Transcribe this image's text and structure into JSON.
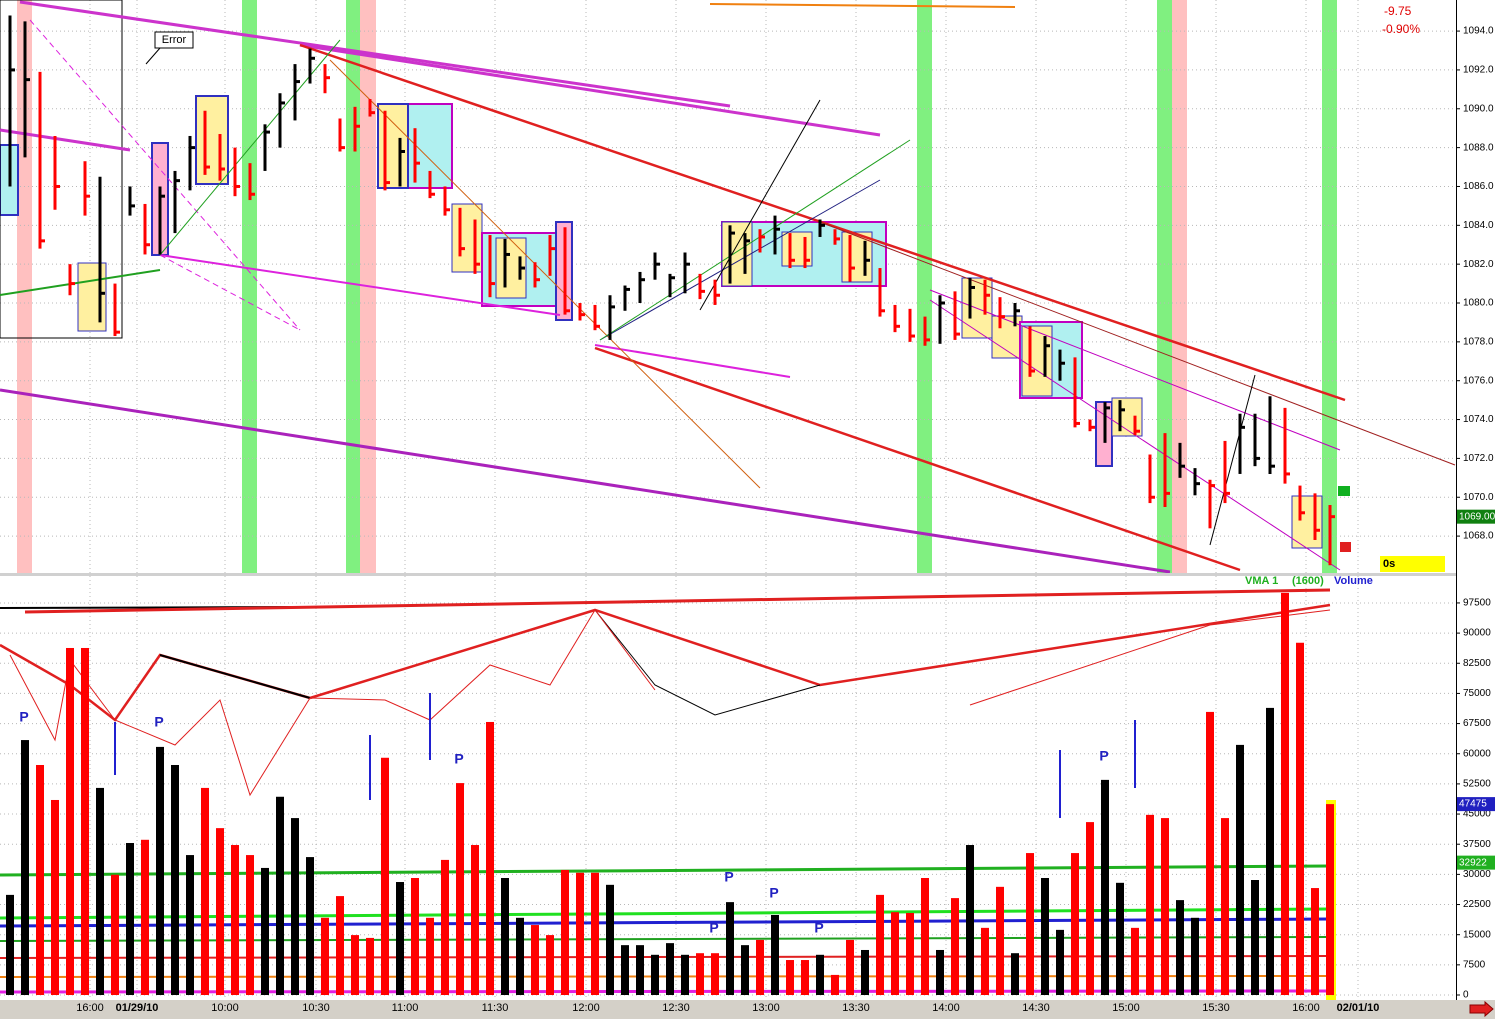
{
  "chart_data": {
    "type": "ohlc-volume",
    "price": {
      "ylim": [
        1066.1,
        1095.6
      ],
      "yticks": [
        {
          "value": 1068,
          "label": "1068.0"
        },
        {
          "value": 1070,
          "label": "1070.0"
        },
        {
          "value": 1072,
          "label": "1072.0"
        },
        {
          "value": 1074,
          "label": "1074.0"
        },
        {
          "value": 1076,
          "label": "1076.0"
        },
        {
          "value": 1078,
          "label": "1078.0"
        },
        {
          "value": 1080,
          "label": "1080.0"
        },
        {
          "value": 1082,
          "label": "1082.0"
        },
        {
          "value": 1084,
          "label": "1084.0"
        },
        {
          "value": 1086,
          "label": "1086.0"
        },
        {
          "value": 1088,
          "label": "1088.0"
        },
        {
          "value": 1090,
          "label": "1090.0"
        },
        {
          "value": 1092,
          "label": "1092.0"
        },
        {
          "value": 1094,
          "label": "1094.0"
        }
      ],
      "highs": [
        1094.8,
        1094.5,
        1091.9,
        1088.6,
        1082,
        1087.3,
        1086.5,
        1081,
        1086,
        1085.1,
        1086,
        1086.8,
        1088.6,
        1089.9,
        1088.7,
        1088,
        1087.2,
        1089.2,
        1090.8,
        1092.3,
        1093.1,
        1092.3,
        1089.5,
        1090.1,
        1090.5,
        1089.9,
        1088.5,
        1089,
        1086.8,
        1086,
        1084.9,
        1084.3,
        1083.5,
        1083.3,
        1082.4,
        1082.1,
        1083.5,
        1083.9,
        1080,
        1079.9,
        1080.4,
        1080.9,
        1081.6,
        1082.6,
        1081.5,
        1082.6,
        1081.5,
        1081.2,
        1084,
        1083.6,
        1083.8,
        1084.5,
        1083.6,
        1083.4,
        1084.3,
        1083.8,
        1083.5,
        1083.2,
        1081.8,
        1079.9,
        1079.7,
        1079.3,
        1080.4,
        1080.6,
        1081.3,
        1081.2,
        1080.3,
        1080,
        1078.8,
        1078.3,
        1077.6,
        1077.2,
        1074,
        1074.9,
        1075,
        1074.2,
        1072.2,
        1073.3,
        1072.8,
        1071.5,
        1070.9,
        1072.9,
        1074.3,
        1074.3,
        1075.2,
        1074.6,
        1070.6,
        1070.2,
        1069.6
      ],
      "lows": [
        1086,
        1087.5,
        1082.8,
        1084.8,
        1080.4,
        1084.5,
        1079,
        1078.3,
        1084.5,
        1082.5,
        1082.5,
        1083.6,
        1085.8,
        1086.6,
        1086.3,
        1085.5,
        1085.3,
        1086.8,
        1088,
        1089.4,
        1091.3,
        1090.8,
        1087.8,
        1087.8,
        1089.6,
        1085.8,
        1086,
        1086.2,
        1085.4,
        1084.5,
        1082.4,
        1081.5,
        1080.3,
        1080.8,
        1081.2,
        1080.8,
        1081.4,
        1079.4,
        1079.1,
        1078.6,
        1078.1,
        1079.6,
        1080,
        1081.2,
        1080.3,
        1080.5,
        1080.2,
        1079.9,
        1081,
        1081.5,
        1082.6,
        1082.5,
        1081.8,
        1081.8,
        1083.4,
        1083,
        1081.1,
        1081.4,
        1079.3,
        1078.5,
        1078,
        1077.8,
        1077.9,
        1078.1,
        1079.2,
        1079.4,
        1078.7,
        1078.8,
        1076.2,
        1076.2,
        1076,
        1073.6,
        1073.4,
        1072.8,
        1073.4,
        1073.2,
        1069.7,
        1069.5,
        1071,
        1070.1,
        1068.4,
        1069.7,
        1071.2,
        1071.6,
        1071.2,
        1070.7,
        1068.8,
        1067.8,
        1066.5
      ],
      "closes": [
        1092,
        1091.5,
        1083.2,
        1086,
        1081,
        1085.5,
        1080.5,
        1078.5,
        1085,
        1083,
        1085.5,
        1086.3,
        1088,
        1087,
        1086.9,
        1086,
        1085.6,
        1088.8,
        1090.3,
        1091.4,
        1092.6,
        1091.6,
        1088,
        1089.1,
        1089.8,
        1086.2,
        1087.8,
        1087.2,
        1085.6,
        1084.8,
        1082.8,
        1082,
        1081,
        1082.5,
        1081.8,
        1081.2,
        1082.8,
        1079.6,
        1079.4,
        1078.8,
        1079.8,
        1080.7,
        1081.2,
        1082,
        1081.3,
        1082,
        1080.6,
        1080.4,
        1083.6,
        1083.2,
        1083.4,
        1083.8,
        1082.2,
        1082.2,
        1084,
        1083.3,
        1081.8,
        1082.2,
        1079.6,
        1078.8,
        1078.3,
        1078.1,
        1080,
        1078.4,
        1080.8,
        1080.4,
        1079.3,
        1079.6,
        1076.5,
        1077.8,
        1076.9,
        1073.8,
        1073.6,
        1074.6,
        1074.5,
        1073.4,
        1070,
        1070.2,
        1071.6,
        1070.7,
        1070.6,
        1070.2,
        1073.6,
        1072,
        1071.6,
        1071.2,
        1069.2,
        1068.3,
        1069
      ],
      "current": {
        "value": 1069,
        "label": "1069.00"
      },
      "change": "-9.75",
      "change_pct": "-0.90%",
      "note": "Error",
      "timer": "0s"
    },
    "volume": {
      "ylim": [
        -1240,
        104200
      ],
      "yticks": [
        0,
        7500,
        15000,
        22500,
        30000,
        37500,
        45000,
        52500,
        60000,
        67500,
        75000,
        82500,
        90000,
        97500
      ],
      "values": [
        24900,
        63400,
        57200,
        48500,
        86300,
        86300,
        51500,
        29900,
        37800,
        38600,
        61700,
        57200,
        34800,
        51500,
        41500,
        37300,
        34800,
        31600,
        49300,
        44000,
        34300,
        19200,
        24600,
        14900,
        14200,
        59000,
        28100,
        29100,
        19200,
        33600,
        52700,
        37300,
        67900,
        29100,
        19200,
        17400,
        14900,
        31100,
        30400,
        30400,
        27400,
        12400,
        12400,
        10000,
        12900,
        10000,
        10400,
        10400,
        23100,
        12400,
        13700,
        19900,
        8700,
        8700,
        10000,
        5000,
        13700,
        11200,
        24900,
        20600,
        20400,
        29100,
        11200,
        24100,
        37300,
        16700,
        26900,
        10400,
        35300,
        29100,
        16200,
        35300,
        43000,
        53500,
        27900,
        16700,
        44800,
        44000,
        23600,
        19200,
        70400,
        44000,
        62200,
        28600,
        71400,
        100000,
        87600,
        26600,
        47475
      ],
      "vma_label": "VMA 1",
      "vma_period": "(1600)",
      "vma_value": 32922,
      "title": "Volume",
      "markers": [
        "P",
        "P",
        "P",
        "P",
        "P",
        "P",
        "P",
        "P"
      ]
    },
    "bar_colors": [
      "#000000",
      "#000000",
      "#ff0000",
      "#ff0000",
      "#ff0000",
      "#ff0000",
      "#000000",
      "#ff0000",
      "#000000",
      "#ff0000",
      "#000000",
      "#000000",
      "#000000",
      "#ff0000",
      "#ff0000",
      "#ff0000",
      "#ff0000",
      "#000000",
      "#000000",
      "#000000",
      "#000000",
      "#ff0000",
      "#ff0000",
      "#ff0000",
      "#ff0000",
      "#ff0000",
      "#000000",
      "#ff0000",
      "#ff0000",
      "#ff0000",
      "#ff0000",
      "#ff0000",
      "#ff0000",
      "#000000",
      "#000000",
      "#ff0000",
      "#ff0000",
      "#ff0000",
      "#ff0000",
      "#ff0000",
      "#000000",
      "#000000",
      "#000000",
      "#000000",
      "#000000",
      "#000000",
      "#ff0000",
      "#ff0000",
      "#000000",
      "#000000",
      "#ff0000",
      "#000000",
      "#ff0000",
      "#ff0000",
      "#000000",
      "#ff0000",
      "#ff0000",
      "#000000",
      "#ff0000",
      "#ff0000",
      "#ff0000",
      "#ff0000",
      "#000000",
      "#ff0000",
      "#000000",
      "#ff0000",
      "#ff0000",
      "#000000",
      "#ff0000",
      "#000000",
      "#000000",
      "#ff0000",
      "#ff0000",
      "#000000",
      "#000000",
      "#ff0000",
      "#ff0000",
      "#ff0000",
      "#000000",
      "#000000",
      "#ff0000",
      "#ff0000",
      "#000000",
      "#000000",
      "#000000",
      "#ff0000",
      "#ff0000",
      "#ff0000",
      "#ff0000"
    ],
    "x_labels": [
      "16:00",
      "01/29/10",
      "10:00",
      "10:30",
      "11:00",
      "11:30",
      "12:00",
      "12:30",
      "13:00",
      "13:30",
      "14:00",
      "14:30",
      "15:00",
      "15:30",
      "16:00",
      "02/01/10"
    ]
  }
}
